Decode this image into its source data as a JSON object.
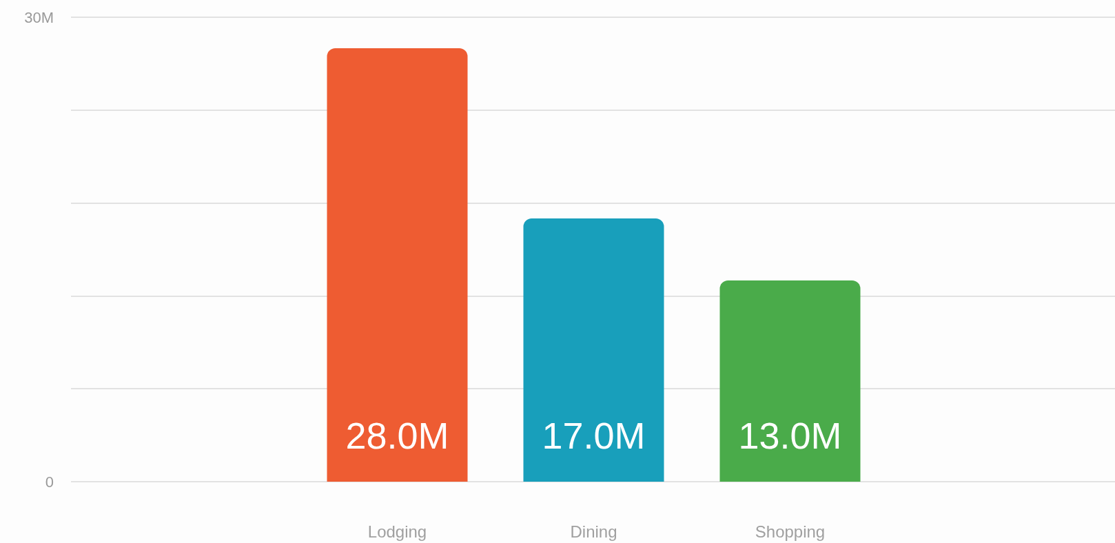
{
  "chart_data": {
    "type": "bar",
    "categories": [
      "Lodging",
      "Dining",
      "Shopping"
    ],
    "values": [
      28,
      17,
      13
    ],
    "colors": [
      "#ee5c32",
      "#189fbb",
      "#4aab4a"
    ],
    "value_labels": [
      "28.0M",
      "17.0M",
      "13.0M"
    ],
    "ylim": [
      0,
      30
    ],
    "yticks": [
      0,
      {
        "value": 6,
        "label": null
      },
      {
        "value": 12,
        "label": null
      },
      {
        "value": 18,
        "label": null
      },
      {
        "value": 24,
        "label": null
      },
      {
        "value": 30,
        "label": "30M"
      }
    ],
    "grid": "y"
  }
}
